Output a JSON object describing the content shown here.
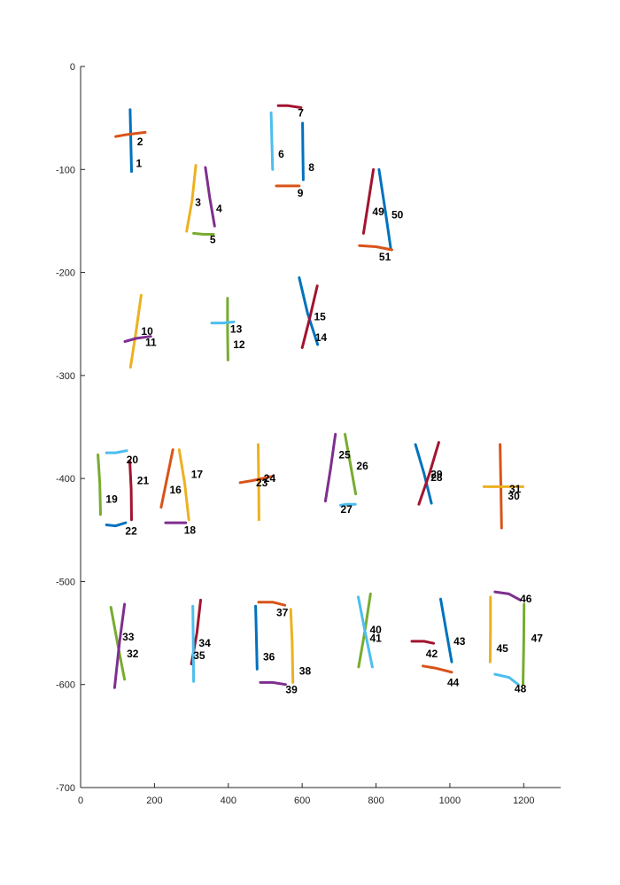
{
  "palette": {
    "blue": "#0072BD",
    "orange": "#D95319",
    "yellow": "#EDB120",
    "purple": "#7E2F8E",
    "green": "#77AC30",
    "cyan": "#4DBEEE",
    "maroon": "#A2142F"
  },
  "chart_data": {
    "type": "line",
    "title": "",
    "xlabel": "",
    "ylabel": "",
    "xlim": [
      0,
      1300
    ],
    "ylim": [
      -700,
      0
    ],
    "x_ticks": [
      {
        "value": 0,
        "label": "0"
      },
      {
        "value": 200,
        "label": "200"
      },
      {
        "value": 400,
        "label": "400"
      },
      {
        "value": 600,
        "label": "600"
      },
      {
        "value": 800,
        "label": "800"
      },
      {
        "value": 1000,
        "label": "1000"
      },
      {
        "value": 1200,
        "label": "1200"
      }
    ],
    "y_ticks": [
      {
        "value": 0,
        "label": "0"
      },
      {
        "value": -100,
        "label": "-100"
      },
      {
        "value": -200,
        "label": "-200"
      },
      {
        "value": -300,
        "label": "-300"
      },
      {
        "value": -400,
        "label": "-400"
      },
      {
        "value": -500,
        "label": "-500"
      },
      {
        "value": -600,
        "label": "-600"
      },
      {
        "value": -700,
        "label": "-700"
      }
    ],
    "grid": false,
    "box": "left-bottom",
    "series": [
      {
        "label": "1",
        "color": "#0072BD",
        "points": [
          [
            134,
            -42
          ],
          [
            136,
            -72
          ],
          [
            138,
            -102
          ]
        ],
        "label_at": [
          150,
          -94
        ]
      },
      {
        "label": "2",
        "color": "#D95319",
        "points": [
          [
            95,
            -68
          ],
          [
            128,
            -66
          ],
          [
            175,
            -64
          ]
        ],
        "label_at": [
          153,
          -73
        ]
      },
      {
        "label": "3",
        "color": "#EDB120",
        "points": [
          [
            312,
            -96
          ],
          [
            302,
            -130
          ],
          [
            287,
            -160
          ]
        ],
        "label_at": [
          310,
          -132
        ]
      },
      {
        "label": "4",
        "color": "#7E2F8E",
        "points": [
          [
            338,
            -98
          ],
          [
            350,
            -128
          ],
          [
            363,
            -155
          ]
        ],
        "label_at": [
          367,
          -138
        ]
      },
      {
        "label": "5",
        "color": "#77AC30",
        "points": [
          [
            306,
            -162
          ],
          [
            333,
            -163
          ],
          [
            360,
            -163
          ]
        ],
        "label_at": [
          350,
          -168
        ]
      },
      {
        "label": "6",
        "color": "#4DBEEE",
        "points": [
          [
            516,
            -45
          ],
          [
            518,
            -75
          ],
          [
            520,
            -100
          ]
        ],
        "label_at": [
          535,
          -85
        ]
      },
      {
        "label": "7",
        "color": "#A2142F",
        "points": [
          [
            535,
            -38
          ],
          [
            560,
            -38
          ],
          [
            597,
            -40
          ]
        ],
        "label_at": [
          588,
          -45
        ]
      },
      {
        "label": "8",
        "color": "#0072BD",
        "points": [
          [
            601,
            -55
          ],
          [
            602,
            -85
          ],
          [
            603,
            -110
          ]
        ],
        "label_at": [
          617,
          -98
        ]
      },
      {
        "label": "9",
        "color": "#D95319",
        "points": [
          [
            530,
            -116
          ],
          [
            555,
            -116
          ],
          [
            592,
            -116
          ]
        ],
        "label_at": [
          587,
          -123
        ]
      },
      {
        "label": "10",
        "color": "#EDB120",
        "points": [
          [
            164,
            -222
          ],
          [
            150,
            -258
          ],
          [
            135,
            -292
          ]
        ],
        "label_at": [
          164,
          -257
        ]
      },
      {
        "label": "11",
        "color": "#7E2F8E",
        "points": [
          [
            120,
            -267
          ],
          [
            150,
            -264
          ],
          [
            190,
            -262
          ]
        ],
        "label_at": [
          175,
          -268
        ]
      },
      {
        "label": "12",
        "color": "#77AC30",
        "points": [
          [
            398,
            -225
          ],
          [
            398,
            -255
          ],
          [
            399,
            -285
          ]
        ],
        "label_at": [
          413,
          -270
        ]
      },
      {
        "label": "13",
        "color": "#4DBEEE",
        "points": [
          [
            355,
            -249
          ],
          [
            385,
            -249
          ],
          [
            415,
            -248
          ]
        ],
        "label_at": [
          405,
          -255
        ]
      },
      {
        "label": "14",
        "color": "#0072BD",
        "points": [
          [
            592,
            -205
          ],
          [
            615,
            -240
          ],
          [
            642,
            -270
          ]
        ],
        "label_at": [
          635,
          -263
        ]
      },
      {
        "label": "15",
        "color": "#A2142F",
        "points": [
          [
            641,
            -213
          ],
          [
            620,
            -245
          ],
          [
            600,
            -273
          ]
        ],
        "label_at": [
          632,
          -243
        ]
      },
      {
        "label": "16",
        "color": "#D95319",
        "points": [
          [
            250,
            -372
          ],
          [
            235,
            -398
          ],
          [
            218,
            -428
          ]
        ],
        "label_at": [
          241,
          -411
        ]
      },
      {
        "label": "17",
        "color": "#EDB120",
        "points": [
          [
            267,
            -372
          ],
          [
            282,
            -405
          ],
          [
            293,
            -440
          ]
        ],
        "label_at": [
          299,
          -396
        ]
      },
      {
        "label": "18",
        "color": "#7E2F8E",
        "points": [
          [
            230,
            -443
          ],
          [
            258,
            -443
          ],
          [
            285,
            -443
          ]
        ],
        "label_at": [
          280,
          -450
        ]
      },
      {
        "label": "19",
        "color": "#77AC30",
        "points": [
          [
            47,
            -377
          ],
          [
            52,
            -405
          ],
          [
            54,
            -435
          ]
        ],
        "label_at": [
          68,
          -420
        ]
      },
      {
        "label": "20",
        "color": "#4DBEEE",
        "points": [
          [
            70,
            -375
          ],
          [
            95,
            -375
          ],
          [
            125,
            -373
          ]
        ],
        "label_at": [
          124,
          -382
        ]
      },
      {
        "label": "21",
        "color": "#A2142F",
        "points": [
          [
            133,
            -383
          ],
          [
            137,
            -410
          ],
          [
            138,
            -440
          ]
        ],
        "label_at": [
          153,
          -402
        ]
      },
      {
        "label": "22",
        "color": "#0072BD",
        "points": [
          [
            70,
            -445
          ],
          [
            95,
            -446
          ],
          [
            122,
            -443
          ]
        ],
        "label_at": [
          121,
          -451
        ]
      },
      {
        "label": "23",
        "color": "#EDB120",
        "points": [
          [
            481,
            -367
          ],
          [
            482,
            -400
          ],
          [
            483,
            -440
          ]
        ],
        "label_at": [
          475,
          -404
        ]
      },
      {
        "label": "24",
        "color": "#D95319",
        "points": [
          [
            432,
            -404
          ],
          [
            465,
            -402
          ],
          [
            518,
            -398
          ]
        ],
        "label_at": [
          496,
          -400
        ]
      },
      {
        "label": "25",
        "color": "#7E2F8E",
        "points": [
          [
            690,
            -357
          ],
          [
            677,
            -390
          ],
          [
            663,
            -422
          ]
        ],
        "label_at": [
          699,
          -377
        ]
      },
      {
        "label": "26",
        "color": "#77AC30",
        "points": [
          [
            716,
            -357
          ],
          [
            730,
            -385
          ],
          [
            745,
            -415
          ]
        ],
        "label_at": [
          747,
          -388
        ]
      },
      {
        "label": "27",
        "color": "#4DBEEE",
        "points": [
          [
            704,
            -426
          ],
          [
            720,
            -425
          ],
          [
            744,
            -425
          ]
        ],
        "label_at": [
          704,
          -430
        ]
      },
      {
        "label": "28",
        "color": "#0072BD",
        "points": [
          [
            907,
            -367
          ],
          [
            930,
            -395
          ],
          [
            950,
            -424
          ]
        ],
        "label_at": [
          948,
          -399
        ]
      },
      {
        "label": "29",
        "color": "#A2142F",
        "points": [
          [
            970,
            -365
          ],
          [
            945,
            -395
          ],
          [
            916,
            -425
          ]
        ],
        "label_at": [
          948,
          -396
        ]
      },
      {
        "label": "30",
        "color": "#D95319",
        "points": [
          [
            1136,
            -367
          ],
          [
            1138,
            -408
          ],
          [
            1140,
            -448
          ]
        ],
        "label_at": [
          1157,
          -417
        ]
      },
      {
        "label": "31",
        "color": "#EDB120",
        "points": [
          [
            1092,
            -408
          ],
          [
            1140,
            -408
          ],
          [
            1198,
            -408
          ]
        ],
        "label_at": [
          1161,
          -410
        ]
      },
      {
        "label": "32",
        "color": "#77AC30",
        "points": [
          [
            82,
            -525
          ],
          [
            100,
            -560
          ],
          [
            119,
            -595
          ]
        ],
        "label_at": [
          125,
          -570
        ]
      },
      {
        "label": "33",
        "color": "#7E2F8E",
        "points": [
          [
            119,
            -522
          ],
          [
            105,
            -560
          ],
          [
            92,
            -603
          ]
        ],
        "label_at": [
          113,
          -554
        ]
      },
      {
        "label": "34",
        "color": "#A2142F",
        "points": [
          [
            325,
            -518
          ],
          [
            315,
            -550
          ],
          [
            300,
            -580
          ]
        ],
        "label_at": [
          320,
          -560
        ]
      },
      {
        "label": "35",
        "color": "#4DBEEE",
        "points": [
          [
            304,
            -524
          ],
          [
            305,
            -560
          ],
          [
            306,
            -597
          ]
        ],
        "label_at": [
          305,
          -572
        ]
      },
      {
        "label": "36",
        "color": "#0072BD",
        "points": [
          [
            474,
            -524
          ],
          [
            476,
            -555
          ],
          [
            478,
            -585
          ]
        ],
        "label_at": [
          494,
          -573
        ]
      },
      {
        "label": "37",
        "color": "#D95319",
        "points": [
          [
            482,
            -520
          ],
          [
            520,
            -520
          ],
          [
            553,
            -523
          ]
        ],
        "label_at": [
          530,
          -530
        ]
      },
      {
        "label": "38",
        "color": "#EDB120",
        "points": [
          [
            569,
            -527
          ],
          [
            573,
            -560
          ],
          [
            575,
            -598
          ]
        ],
        "label_at": [
          592,
          -587
        ]
      },
      {
        "label": "39",
        "color": "#7E2F8E",
        "points": [
          [
            487,
            -598
          ],
          [
            520,
            -598
          ],
          [
            555,
            -600
          ]
        ],
        "label_at": [
          555,
          -605
        ]
      },
      {
        "label": "40",
        "color": "#77AC30",
        "points": [
          [
            785,
            -512
          ],
          [
            770,
            -548
          ],
          [
            753,
            -583
          ]
        ],
        "label_at": [
          783,
          -547
        ]
      },
      {
        "label": "41",
        "color": "#4DBEEE",
        "points": [
          [
            752,
            -515
          ],
          [
            770,
            -548
          ],
          [
            790,
            -583
          ]
        ],
        "label_at": [
          783,
          -555
        ]
      },
      {
        "label": "42",
        "color": "#A2142F",
        "points": [
          [
            897,
            -558
          ],
          [
            930,
            -558
          ],
          [
            956,
            -560
          ]
        ],
        "label_at": [
          935,
          -570
        ]
      },
      {
        "label": "43",
        "color": "#0072BD",
        "points": [
          [
            975,
            -517
          ],
          [
            990,
            -548
          ],
          [
            1005,
            -578
          ]
        ],
        "label_at": [
          1010,
          -558
        ]
      },
      {
        "label": "44",
        "color": "#D95319",
        "points": [
          [
            927,
            -582
          ],
          [
            960,
            -584
          ],
          [
            1005,
            -588
          ]
        ],
        "label_at": [
          993,
          -598
        ]
      },
      {
        "label": "45",
        "color": "#EDB120",
        "points": [
          [
            1110,
            -515
          ],
          [
            1110,
            -545
          ],
          [
            1109,
            -578
          ]
        ],
        "label_at": [
          1126,
          -565
        ]
      },
      {
        "label": "46",
        "color": "#7E2F8E",
        "points": [
          [
            1122,
            -510
          ],
          [
            1160,
            -512
          ],
          [
            1191,
            -518
          ]
        ],
        "label_at": [
          1190,
          -517
        ]
      },
      {
        "label": "47",
        "color": "#77AC30",
        "points": [
          [
            1201,
            -522
          ],
          [
            1200,
            -560
          ],
          [
            1198,
            -600
          ]
        ],
        "label_at": [
          1220,
          -555
        ]
      },
      {
        "label": "48",
        "color": "#4DBEEE",
        "points": [
          [
            1122,
            -590
          ],
          [
            1160,
            -593
          ],
          [
            1185,
            -600
          ]
        ],
        "label_at": [
          1175,
          -604
        ]
      },
      {
        "label": "49",
        "color": "#A2142F",
        "points": [
          [
            793,
            -100
          ],
          [
            780,
            -130
          ],
          [
            766,
            -162
          ]
        ],
        "label_at": [
          790,
          -141
        ]
      },
      {
        "label": "50",
        "color": "#0072BD",
        "points": [
          [
            808,
            -100
          ],
          [
            825,
            -140
          ],
          [
            840,
            -177
          ]
        ],
        "label_at": [
          842,
          -144
        ]
      },
      {
        "label": "51",
        "color": "#D95319",
        "points": [
          [
            755,
            -174
          ],
          [
            800,
            -175
          ],
          [
            843,
            -178
          ]
        ],
        "label_at": [
          808,
          -185
        ]
      }
    ]
  }
}
